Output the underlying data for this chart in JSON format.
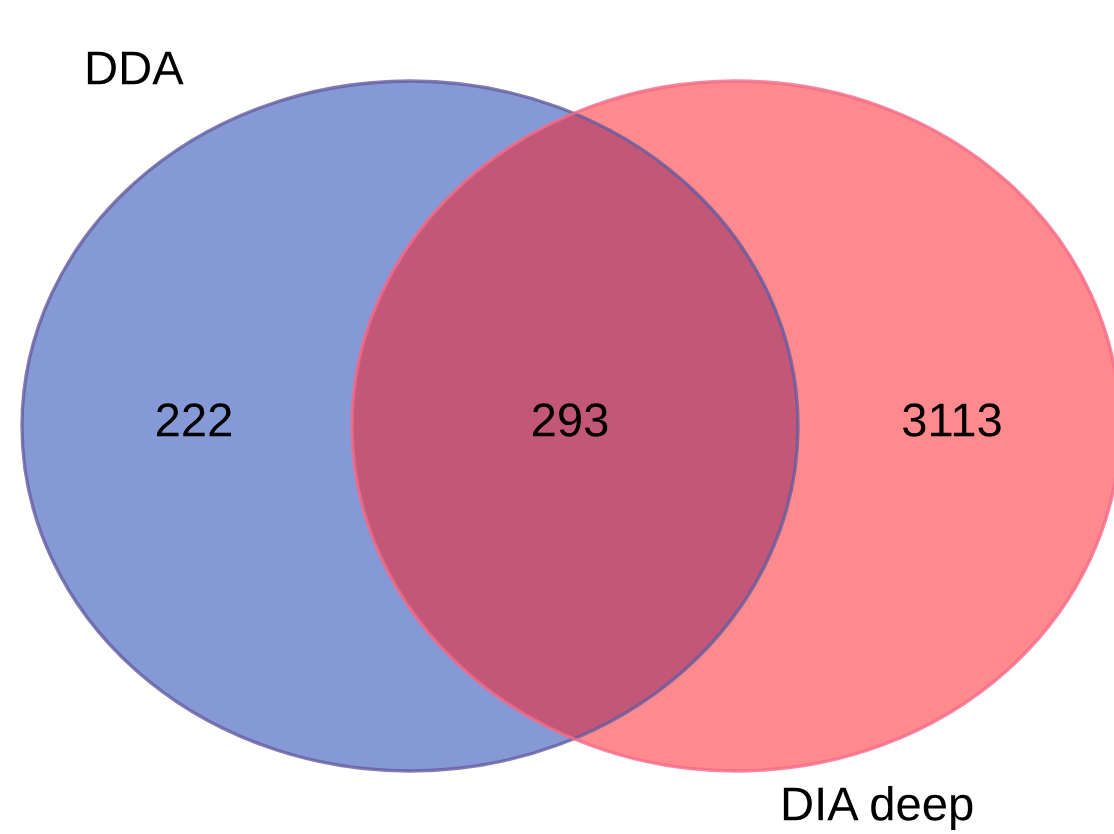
{
  "chart_data": {
    "type": "other",
    "categories": [
      null,
      null,
      null
    ],
    "values": [
      222,
      293,
      3113
    ],
    "data_labels": true,
    "colors": [
      "#8599d6",
      "#c25777",
      "#ff8a8e"
    ],
    "annotations": [
      "DDA",
      "DIA deep"
    ],
    "legend": false
  }
}
